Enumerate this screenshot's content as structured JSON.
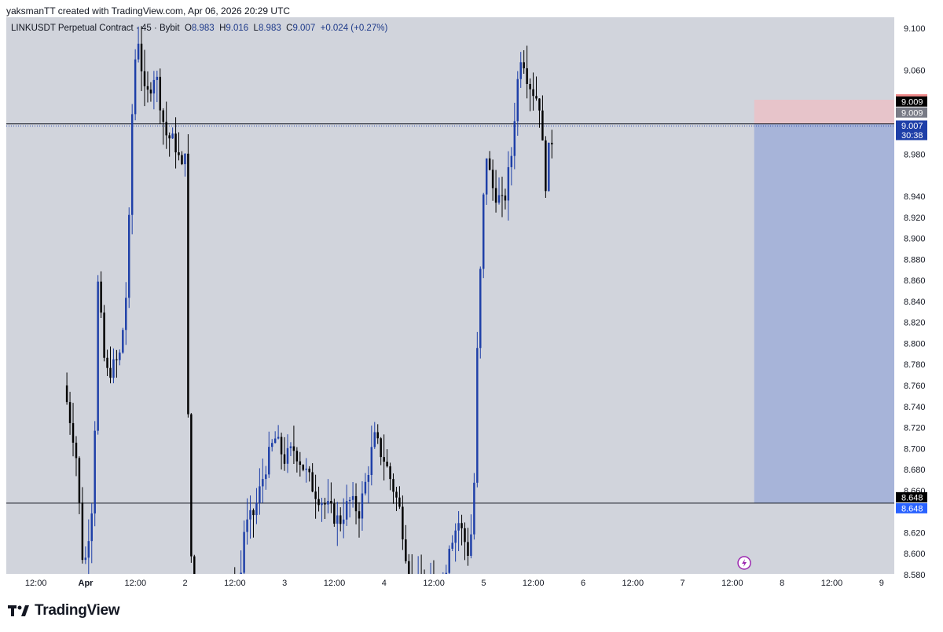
{
  "header": {
    "caption": "yaksmanTT created with TradingView.com, Apr 06, 2026 20:29 UTC"
  },
  "legend": {
    "symbol": "LINKUSDT Perpetual Contract · 45 · Bybit",
    "o_label": "O",
    "o_value": "8.983",
    "h_label": "H",
    "h_value": "9.016",
    "l_label": "L",
    "l_value": "8.983",
    "c_label": "C",
    "c_value": "9.007",
    "change": "+0.024 (+0.27%)"
  },
  "footer": {
    "brand": "TradingView",
    "logo_icon": "tradingview-logo-icon"
  },
  "colors": {
    "background": "#d1d4dc",
    "up_candle": "#1e3fa8",
    "down_candle": "#000000",
    "stop_zone": "#e8c3c8",
    "target_zone": "#a4b2d8",
    "last_price_tag": "#1e3fa8",
    "stop_tag": "#f08a8a",
    "entry_tag": "#787b86"
  },
  "chart_data": {
    "type": "candlestick",
    "ylim": [
      8.57,
      9.115
    ],
    "y_ticks": [
      "9.100",
      "9.060",
      "8.980",
      "8.940",
      "8.920",
      "8.900",
      "8.880",
      "8.860",
      "8.840",
      "8.820",
      "8.800",
      "8.780",
      "8.760",
      "8.740",
      "8.720",
      "8.700",
      "8.680",
      "8.660",
      "8.620",
      "8.600",
      "8.580"
    ],
    "x_ticks": [
      "12:00",
      "Apr",
      "12:00",
      "2",
      "12:00",
      "3",
      "12:00",
      "4",
      "12:00",
      "5",
      "12:00",
      "6",
      "12:00",
      "7",
      "12:00",
      "8",
      "12:00",
      "9"
    ],
    "price_labels": [
      {
        "text": "9.032",
        "value": 9.032,
        "role": "stop"
      },
      {
        "text": "9.009",
        "value": 9.009,
        "role": "horizontal-line"
      },
      {
        "text": "9.009",
        "value": 9.009,
        "role": "entry"
      },
      {
        "text": "9.007",
        "value": 9.007,
        "role": "last-price"
      },
      {
        "text": "30:38",
        "value": 9.007,
        "role": "countdown"
      },
      {
        "text": "8.648",
        "value": 8.648,
        "role": "horizontal-line"
      },
      {
        "text": "8.648",
        "value": 8.648,
        "role": "target"
      }
    ],
    "horizontal_lines": [
      9.009,
      8.648
    ],
    "position": {
      "type": "short",
      "entry": 9.009,
      "stop": 9.032,
      "target": 8.648,
      "start_day": 6.72,
      "end_day": 8.2
    },
    "x_start_day": -0.22,
    "bar_days": 0.03125,
    "anchors": [
      [
        -0.22,
        8.76
      ],
      [
        -0.1,
        8.7
      ],
      [
        -0.02,
        8.58
      ],
      [
        0.08,
        8.66
      ],
      [
        0.12,
        8.86
      ],
      [
        0.2,
        8.77
      ],
      [
        0.3,
        8.78
      ],
      [
        0.35,
        8.79
      ],
      [
        0.42,
        8.86
      ],
      [
        0.48,
        9.06
      ],
      [
        0.53,
        9.09
      ],
      [
        0.6,
        9.03
      ],
      [
        0.7,
        9.06
      ],
      [
        0.8,
        9.0
      ],
      [
        0.9,
        8.99
      ],
      [
        0.98,
        8.96
      ],
      [
        1.0,
        8.99
      ],
      [
        1.02,
        8.78
      ],
      [
        1.05,
        8.62
      ],
      [
        1.08,
        8.56
      ],
      [
        1.55,
        8.56
      ],
      [
        1.58,
        8.62
      ],
      [
        1.7,
        8.64
      ],
      [
        1.8,
        8.68
      ],
      [
        1.9,
        8.71
      ],
      [
        2.0,
        8.69
      ],
      [
        2.1,
        8.7
      ],
      [
        2.2,
        8.68
      ],
      [
        2.3,
        8.66
      ],
      [
        2.42,
        8.645
      ],
      [
        2.55,
        8.63
      ],
      [
        2.65,
        8.65
      ],
      [
        2.75,
        8.64
      ],
      [
        2.82,
        8.67
      ],
      [
        2.9,
        8.71
      ],
      [
        3.0,
        8.69
      ],
      [
        3.1,
        8.66
      ],
      [
        3.16,
        8.64
      ],
      [
        3.22,
        8.6
      ],
      [
        3.28,
        8.57
      ],
      [
        3.6,
        8.57
      ],
      [
        3.65,
        8.61
      ],
      [
        3.75,
        8.63
      ],
      [
        3.85,
        8.6
      ],
      [
        3.9,
        8.64
      ],
      [
        3.92,
        8.75
      ],
      [
        3.96,
        8.85
      ],
      [
        4.0,
        8.94
      ],
      [
        4.03,
        8.98
      ],
      [
        4.08,
        8.95
      ],
      [
        4.2,
        8.93
      ],
      [
        4.28,
        8.98
      ],
      [
        4.33,
        9.04
      ],
      [
        4.38,
        9.08
      ],
      [
        4.45,
        9.05
      ],
      [
        4.5,
        9.04
      ],
      [
        4.56,
        9.03
      ],
      [
        4.62,
        8.95
      ],
      [
        4.65,
        8.98
      ],
      [
        4.7,
        9.0
      ]
    ]
  }
}
